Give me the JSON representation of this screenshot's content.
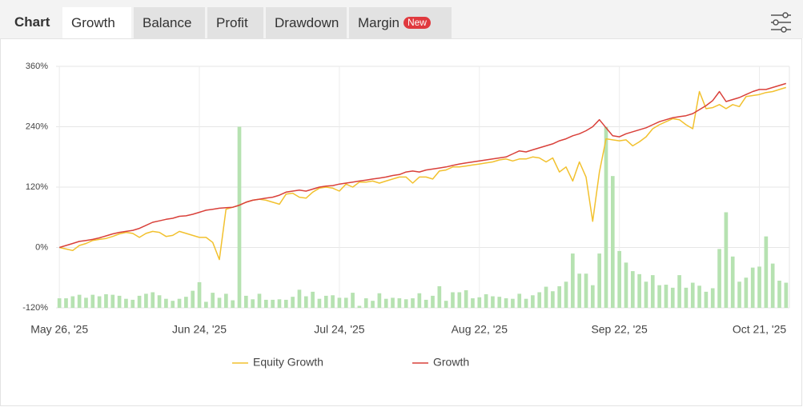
{
  "tabs": {
    "label": "Chart",
    "items": [
      "Growth",
      "Balance",
      "Profit",
      "Drawdown",
      "Margin"
    ],
    "active": 0,
    "badge": "New"
  },
  "chart_data": {
    "type": "line",
    "categories": [
      "May 26, '25",
      null,
      null,
      null,
      null,
      null,
      null,
      null,
      null,
      null,
      null,
      null,
      null,
      null,
      null,
      null,
      null,
      null,
      null,
      null,
      null,
      "Jun 24, '25",
      null,
      null,
      null,
      null,
      null,
      null,
      null,
      null,
      null,
      null,
      null,
      null,
      null,
      null,
      null,
      null,
      null,
      null,
      null,
      null,
      "Jul 24, '25",
      null,
      null,
      null,
      null,
      null,
      null,
      null,
      null,
      null,
      null,
      null,
      null,
      null,
      null,
      null,
      null,
      null,
      null,
      null,
      null,
      "Aug 22, '25",
      null,
      null,
      null,
      null,
      null,
      null,
      null,
      null,
      null,
      null,
      null,
      null,
      null,
      null,
      null,
      null,
      null,
      null,
      null,
      null,
      "Sep 22, '25",
      null,
      null,
      null,
      null,
      null,
      null,
      null,
      null,
      null,
      null,
      null,
      null,
      null,
      null,
      null,
      null,
      null,
      null,
      null,
      null,
      "Oct 21, '25",
      null,
      null,
      null,
      null
    ],
    "series": [
      {
        "type": "bar",
        "color": "#b6e2b1",
        "values": [
          -101,
          -101,
          -97,
          -94,
          -100,
          -94,
          -97,
          -93,
          -94,
          -96,
          -102,
          -104,
          -96,
          -92,
          -89,
          -95,
          -102,
          -106,
          -102,
          -98,
          -86,
          -69,
          -108,
          -90,
          -100,
          -92,
          -105,
          240,
          -96,
          -103,
          -92,
          -104,
          -104,
          -103,
          -104,
          -98,
          -84,
          -97,
          -88,
          -102,
          -96,
          -95,
          -100,
          -100,
          -90,
          -116,
          -101,
          -106,
          -91,
          -102,
          -100,
          -101,
          -103,
          -101,
          -91,
          -104,
          -96,
          -77,
          -106,
          -89,
          -89,
          -85,
          -101,
          -99,
          -93,
          -97,
          -98,
          -101,
          -102,
          -92,
          -102,
          -95,
          -89,
          -78,
          -87,
          -77,
          -68,
          -12,
          -52,
          -52,
          -75,
          -12,
          240,
          142,
          -7,
          -30,
          -47,
          -53,
          -68,
          -55,
          -75,
          -74,
          -80,
          -55,
          -80,
          -70,
          -76,
          -88,
          -81,
          -3,
          70,
          -18,
          -68,
          -60,
          -40,
          -38,
          22,
          -32,
          -66,
          -70
        ]
      },
      {
        "name": "Equity Growth",
        "color": "#f2c12e",
        "values": [
          0,
          -3,
          -6,
          4,
          8,
          14,
          16,
          18,
          22,
          27,
          30,
          28,
          20,
          28,
          32,
          30,
          22,
          24,
          32,
          28,
          24,
          20,
          20,
          10,
          -24,
          76,
          80,
          84,
          90,
          94,
          96,
          94,
          90,
          86,
          106,
          108,
          100,
          98,
          110,
          118,
          120,
          118,
          112,
          126,
          120,
          130,
          130,
          132,
          128,
          132,
          136,
          140,
          140,
          128,
          140,
          140,
          136,
          152,
          154,
          160,
          160,
          162,
          164,
          166,
          168,
          170,
          174,
          176,
          172,
          176,
          176,
          180,
          178,
          170,
          178,
          150,
          160,
          132,
          170,
          140,
          52,
          150,
          216,
          214,
          212,
          214,
          202,
          210,
          220,
          236,
          244,
          250,
          256,
          254,
          244,
          236,
          310,
          276,
          278,
          284,
          276,
          284,
          280,
          300,
          302,
          304,
          308,
          310,
          314,
          318
        ]
      },
      {
        "name": "Growth",
        "color": "#d9403a",
        "values": [
          0,
          4,
          8,
          12,
          14,
          16,
          19,
          23,
          27,
          30,
          32,
          34,
          38,
          44,
          50,
          53,
          56,
          58,
          62,
          63,
          66,
          70,
          74,
          76,
          78,
          79,
          80,
          84,
          90,
          94,
          96,
          98,
          100,
          104,
          110,
          112,
          114,
          112,
          116,
          120,
          122,
          123,
          126,
          128,
          130,
          132,
          134,
          136,
          138,
          140,
          143,
          145,
          150,
          152,
          150,
          154,
          156,
          158,
          160,
          163,
          166,
          168,
          170,
          172,
          174,
          176,
          178,
          180,
          186,
          192,
          190,
          194,
          198,
          202,
          206,
          212,
          216,
          222,
          226,
          232,
          240,
          254,
          238,
          222,
          220,
          226,
          230,
          234,
          238,
          244,
          250,
          254,
          258,
          260,
          262,
          266,
          274,
          282,
          292,
          310,
          290,
          294,
          298,
          304,
          310,
          314,
          314,
          318,
          322,
          326
        ]
      }
    ],
    "ylim": [
      -120,
      360
    ],
    "yticks": [
      {
        "value": -120,
        "label": "-120%"
      },
      {
        "value": 0,
        "label": "0%"
      },
      {
        "value": 120,
        "label": "120%"
      },
      {
        "value": 240,
        "label": "240%"
      },
      {
        "value": 360,
        "label": "360%"
      }
    ],
    "grid": true
  }
}
